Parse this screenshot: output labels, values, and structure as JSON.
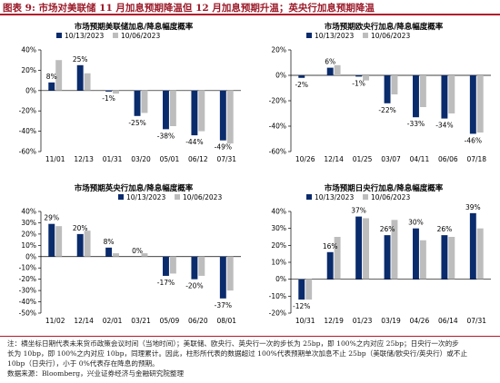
{
  "figure_title": "图表 9:  市场对美联储 11 月加息预期降温但 12 月加息预期升温；英央行加息预期降温",
  "colors": {
    "series1": "#0a2b6c",
    "series2": "#bdbdbd",
    "accent": "#b11a2b"
  },
  "chart_data": [
    {
      "type": "bar",
      "title": "市场预期美联储加息/降息幅度概率",
      "categories": [
        "11/01",
        "12/13",
        "01/31",
        "03/20",
        "05/01",
        "06/12",
        "07/31"
      ],
      "series": [
        {
          "name": "10/13/2023",
          "values": [
            8,
            25,
            -1,
            -25,
            -38,
            -44,
            -49
          ]
        },
        {
          "name": "10/06/2023",
          "values": [
            30,
            17,
            -3,
            -22,
            -35,
            -40,
            -52
          ]
        }
      ],
      "data_labels": [
        "8%",
        "25%",
        "-1%",
        "-25%",
        "-38%",
        "-44%",
        "-49%"
      ],
      "ylim": [
        -60,
        40
      ],
      "yticks": [
        -60,
        -40,
        -20,
        0,
        20,
        40
      ],
      "ytick_labels": [
        "-60%",
        "-40%",
        "-20%",
        "0%",
        "20%",
        "40%"
      ],
      "legend": "top-left"
    },
    {
      "type": "bar",
      "title": "市场预期欧央行加息/降息幅度概率",
      "categories": [
        "10/26",
        "12/14",
        "01/25",
        "03/07",
        "04/11",
        "06/06",
        "07/18"
      ],
      "series": [
        {
          "name": "10/13/2023",
          "values": [
            -2,
            6,
            -1,
            -22,
            -33,
            -34,
            -46
          ]
        },
        {
          "name": "10/06/2023",
          "values": [
            0,
            8,
            -4,
            -15,
            -25,
            -30,
            -45
          ]
        }
      ],
      "data_labels": [
        "-2%",
        "6%",
        "-1%",
        "-22%",
        "-33%",
        "-34%",
        "-46%"
      ],
      "ylim": [
        -60,
        20
      ],
      "yticks": [
        -60,
        -40,
        -20,
        0,
        20
      ],
      "ytick_labels": [
        "-60%",
        "-40%",
        "-20%",
        "0%",
        "20%"
      ],
      "legend": "top-left"
    },
    {
      "type": "bar",
      "title": "市场预期英央行加息/降息幅度概率",
      "categories": [
        "11/02",
        "12/14",
        "02/01",
        "03/21",
        "05/09",
        "06/20",
        "08/01"
      ],
      "series": [
        {
          "name": "10/13/2023",
          "values": [
            29,
            20,
            8,
            0,
            -17,
            -20,
            -37
          ]
        },
        {
          "name": "10/06/2023",
          "values": [
            27,
            23,
            3,
            3,
            -15,
            -17,
            -30
          ]
        }
      ],
      "data_labels": [
        "29%",
        "20%",
        "8%",
        "0%",
        "-17%",
        "-20%",
        "-37%"
      ],
      "ylim": [
        -50,
        40
      ],
      "yticks": [
        -50,
        -40,
        -30,
        -20,
        -10,
        0,
        10,
        20,
        30,
        40
      ],
      "ytick_labels": [
        "-50%",
        "-40%",
        "-30%",
        "-20%",
        "-10%",
        "0%",
        "10%",
        "20%",
        "30%",
        "40%"
      ],
      "legend": "top-right"
    },
    {
      "type": "bar",
      "title": "市场预期日央行加息/降息幅度概率",
      "categories": [
        "10/31",
        "12/19",
        "01/23",
        "03/19",
        "04/26",
        "06/14",
        "07/31"
      ],
      "series": [
        {
          "name": "10/13/2023",
          "values": [
            -12,
            16,
            37,
            26,
            30,
            26,
            39
          ]
        },
        {
          "name": "10/06/2023",
          "values": [
            -12,
            25,
            36,
            35,
            23,
            25,
            30
          ]
        }
      ],
      "data_labels": [
        "-12%",
        "16%",
        "37%",
        "26%",
        "30%",
        "26%",
        "39%"
      ],
      "ylim": [
        -20,
        40
      ],
      "yticks": [
        -20,
        -10,
        0,
        10,
        20,
        30,
        40
      ],
      "ytick_labels": [
        "-20%",
        "-10%",
        "0%",
        "10%",
        "20%",
        "30%",
        "40%"
      ],
      "legend": "top-left"
    }
  ],
  "footer": {
    "note_line1": "注：横坐标日期代表未来货币政策会议时间（当地时间）；美联储、欧央行、英央行一次的步长为 25bp，即 100%之内对应 25bp；日央行一次的步",
    "note_line2": "长为 10bp，即 100%之内对应 10bp，同理累计。因此，柱形所代表的数据超过 100%代表预期单次加息不止 25bp（美联储/欧央行/英央行）或不止",
    "note_line3": "10bp（日央行），小于 0%代表存在降息的预期。",
    "source": "数据来源：Bloomberg，兴业证券经济与金融研究院整理"
  }
}
